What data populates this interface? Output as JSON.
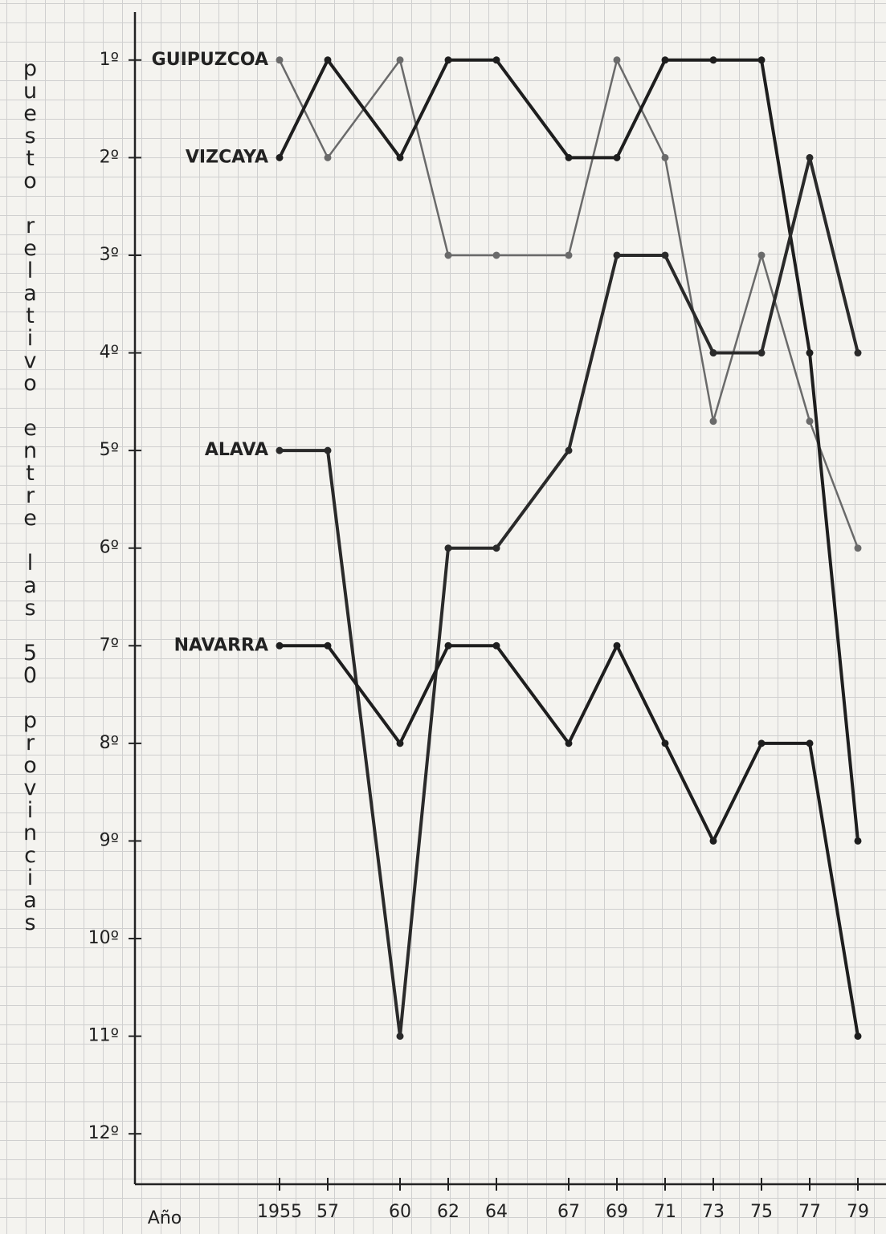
{
  "chart_data": {
    "type": "line",
    "y_label": "puesto relativo entre las 50 provincias",
    "x_label": "Año",
    "x": [
      1955,
      1957,
      1960,
      1962,
      1964,
      1967,
      1969,
      1971,
      1973,
      1975,
      1977,
      1979
    ],
    "xlim": [
      1949,
      1980
    ],
    "xticks": [
      1955,
      {
        "value": 1957,
        "label": "57"
      },
      {
        "value": 1960,
        "label": "60"
      },
      {
        "value": 1962,
        "label": "62"
      },
      {
        "value": 1964,
        "label": "64"
      },
      {
        "value": 1967,
        "label": "67"
      },
      {
        "value": 1969,
        "label": "69"
      },
      {
        "value": 1971,
        "label": "71"
      },
      {
        "value": 1973,
        "label": "73"
      },
      {
        "value": 1975,
        "label": "75"
      },
      {
        "value": 1977,
        "label": "77"
      },
      {
        "value": 1979,
        "label": "79"
      }
    ],
    "ylim": [
      12.5,
      0.5
    ],
    "yticks": [
      {
        "value": 1,
        "label": "1º"
      },
      {
        "value": 2,
        "label": "2º"
      },
      {
        "value": 3,
        "label": "3º"
      },
      {
        "value": 4,
        "label": "4º"
      },
      {
        "value": 5,
        "label": "5º"
      },
      {
        "value": 6,
        "label": "6º"
      },
      {
        "value": 7,
        "label": "7º"
      },
      {
        "value": 8,
        "label": "8º"
      },
      {
        "value": 9,
        "label": "9º"
      },
      {
        "value": 10,
        "label": "10º"
      },
      {
        "value": 11,
        "label": "11º"
      },
      {
        "value": 12,
        "label": "12º"
      }
    ],
    "series": [
      {
        "name": "GUIPUZCOA",
        "color": "#6a6a6a",
        "values": [
          1,
          2,
          1,
          3,
          3,
          3,
          1,
          2,
          4.7,
          3,
          4.7,
          6
        ]
      },
      {
        "name": "VIZCAYA",
        "color": "#1e1e1e",
        "values": [
          2,
          1,
          2,
          1,
          1,
          2,
          2,
          1,
          1,
          1,
          4,
          9
        ]
      },
      {
        "name": "ALAVA",
        "color": "#2a2a2a",
        "values": [
          5,
          5,
          11,
          6,
          6,
          5,
          3,
          3,
          4,
          4,
          2,
          4
        ]
      },
      {
        "name": "NAVARRA",
        "color": "#1e1e1e",
        "values": [
          7,
          7,
          8,
          7,
          7,
          8,
          7,
          8,
          9,
          8,
          8,
          11
        ]
      }
    ]
  }
}
